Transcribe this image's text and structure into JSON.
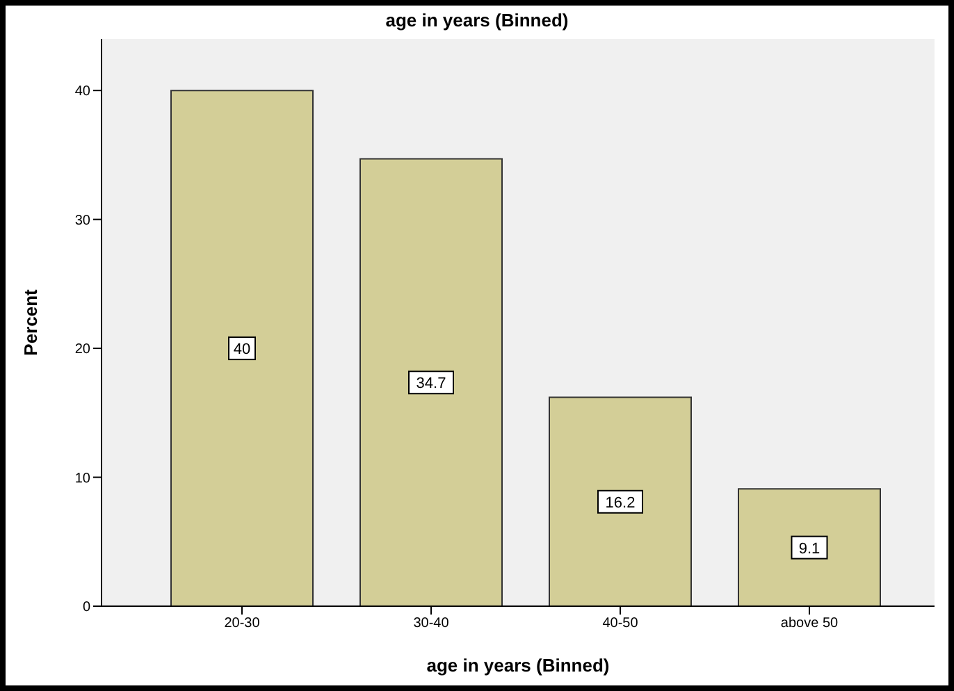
{
  "chart_data": {
    "type": "bar",
    "title": "age in years (Binned)",
    "xlabel": "age in years (Binned)",
    "ylabel": "Percent",
    "categories": [
      "20-30",
      "30-40",
      "40-50",
      "above 50"
    ],
    "values": [
      40,
      34.7,
      16.2,
      9.1
    ],
    "color": "#d3ce97",
    "ylim": [
      0,
      44
    ],
    "yticks": [
      0,
      10,
      20,
      30,
      40
    ],
    "data_labels": true
  }
}
